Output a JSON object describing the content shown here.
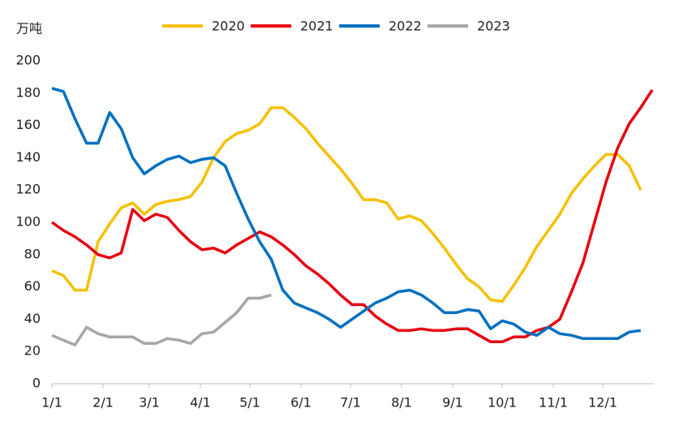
{
  "chart_data": {
    "type": "line",
    "y_label": "万吨",
    "x": [
      0,
      7,
      14,
      21,
      28,
      35,
      42,
      49,
      56,
      63,
      70,
      77,
      84,
      91,
      98,
      105,
      112,
      119,
      126,
      133,
      140,
      147,
      154,
      161,
      168,
      175,
      182,
      189,
      196,
      203,
      210,
      217,
      224,
      231,
      238,
      245,
      252,
      259,
      266,
      273,
      280,
      287,
      294,
      301,
      308,
      315,
      322,
      329,
      336,
      343,
      350,
      357,
      364
    ],
    "xlim": [
      0,
      365
    ],
    "xticks": [
      {
        "value": 0,
        "label": "1/1"
      },
      {
        "value": 31,
        "label": "2/1"
      },
      {
        "value": 59,
        "label": "3/1"
      },
      {
        "value": 90,
        "label": "4/1"
      },
      {
        "value": 120,
        "label": "5/1"
      },
      {
        "value": 151,
        "label": "6/1"
      },
      {
        "value": 181,
        "label": "7/1"
      },
      {
        "value": 212,
        "label": "8/1"
      },
      {
        "value": 243,
        "label": "9/1"
      },
      {
        "value": 273,
        "label": "10/1"
      },
      {
        "value": 304,
        "label": "11/1"
      },
      {
        "value": 334,
        "label": "12/1"
      }
    ],
    "ylim": [
      0,
      200
    ],
    "yticks": [
      0,
      20,
      40,
      60,
      80,
      100,
      120,
      140,
      160,
      180,
      200
    ],
    "grid": false,
    "legend": "top",
    "series": [
      {
        "name": "2020",
        "color": "#f5c000",
        "values": [
          70,
          67,
          58,
          58,
          88,
          99,
          109,
          112,
          105,
          111,
          113,
          114,
          116,
          125,
          140,
          150,
          155,
          157,
          161,
          171,
          171,
          165,
          158,
          149,
          141,
          133,
          124,
          114,
          114,
          112,
          102,
          104,
          101,
          93,
          84,
          74,
          65,
          60,
          52,
          51,
          61,
          72,
          85,
          95,
          105,
          118,
          127,
          135,
          142,
          142,
          135,
          120,
          null
        ]
      },
      {
        "name": "2021",
        "color": "#e60012",
        "values": [
          100,
          95,
          91,
          86,
          80,
          78,
          81,
          108,
          101,
          105,
          103,
          95,
          88,
          83,
          84,
          81,
          86,
          90,
          94,
          91,
          86,
          80,
          73,
          68,
          62,
          55,
          49,
          49,
          42,
          37,
          33,
          33,
          34,
          33,
          33,
          34,
          34,
          30,
          26,
          26,
          29,
          29,
          33,
          35,
          40,
          57,
          75,
          100,
          125,
          146,
          161,
          171,
          182
        ]
      },
      {
        "name": "2022",
        "color": "#0070c0",
        "values": [
          183,
          181,
          164,
          149,
          149,
          168,
          158,
          140,
          130,
          135,
          139,
          141,
          137,
          139,
          140,
          135,
          118,
          102,
          88,
          77,
          58,
          50,
          47,
          44,
          40,
          35,
          40,
          45,
          50,
          53,
          57,
          58,
          55,
          50,
          44,
          44,
          46,
          45,
          34,
          39,
          37,
          32,
          30,
          35,
          31,
          30,
          28,
          28,
          28,
          28,
          32,
          33,
          null
        ]
      },
      {
        "name": "2023",
        "color": "#a6a6a6",
        "values": [
          30,
          27,
          24,
          35,
          31,
          29,
          29,
          29,
          25,
          25,
          28,
          27,
          25,
          31,
          32,
          38,
          44,
          53,
          53,
          55,
          null,
          null,
          null,
          null,
          null,
          null,
          null,
          null,
          null,
          null,
          null,
          null,
          null,
          null,
          null,
          null,
          null,
          null,
          null,
          null,
          null,
          null,
          null,
          null,
          null,
          null,
          null,
          null,
          null,
          null,
          null,
          null,
          null
        ]
      }
    ]
  }
}
